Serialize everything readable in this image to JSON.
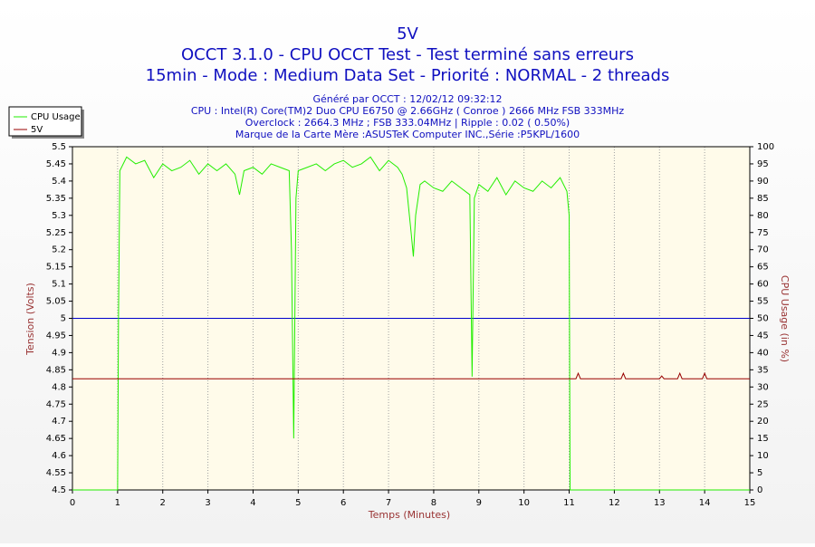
{
  "chart_data": {
    "type": "line",
    "title": "5V",
    "subtitle": [
      "OCCT 3.1.0 - CPU OCCT Test - Test terminé sans erreurs",
      "15min - Mode : Medium Data Set - Priorité : NORMAL - 2 threads"
    ],
    "info": [
      "Généré par OCCT : 12/02/12 09:32:12",
      "CPU : Intel(R) Core(TM)2 Duo CPU E6750 @ 2.66GHz ( Conroe ) 2666 MHz FSB 333MHz",
      "Overclock : 2664.3 MHz ; FSB 333.04MHz | Ripple : 0.02 ( 0.50%)",
      "Marque de la Carte Mère :ASUSTeK Computer INC.,Série :P5KPL/1600"
    ],
    "x_label": "Temps (Minutes)",
    "y_label": "Tension (Volts)",
    "y2_label": "CPU Usage (in %)",
    "xlim": [
      0,
      15
    ],
    "xticks": [
      0,
      1,
      2,
      3,
      4,
      5,
      6,
      7,
      8,
      9,
      10,
      11,
      12,
      13,
      14,
      15
    ],
    "ylim": [
      4.5,
      5.5
    ],
    "yticks": [
      4.5,
      4.55,
      4.6,
      4.65,
      4.7,
      4.75,
      4.8,
      4.85,
      4.9,
      4.95,
      5,
      5.05,
      5.1,
      5.15,
      5.2,
      5.25,
      5.3,
      5.35,
      5.4,
      5.45,
      5.5
    ],
    "y2lim": [
      0,
      100
    ],
    "y2ticks": [
      0,
      5,
      10,
      15,
      20,
      25,
      30,
      35,
      40,
      45,
      50,
      55,
      60,
      65,
      70,
      75,
      80,
      85,
      90,
      95,
      100
    ],
    "grid": "x",
    "legend": "upper left",
    "reference_line": {
      "value": 5,
      "color": "#0000cc"
    },
    "series": [
      {
        "name": "CPU Usage",
        "color": "#22ee00",
        "axis": "y2",
        "x": [
          0,
          1.0,
          1.02,
          1.05,
          1.2,
          1.4,
          1.6,
          1.8,
          2.0,
          2.2,
          2.4,
          2.6,
          2.8,
          3.0,
          3.2,
          3.4,
          3.6,
          3.7,
          3.8,
          4.0,
          4.2,
          4.4,
          4.6,
          4.8,
          4.85,
          4.9,
          4.95,
          5.0,
          5.2,
          5.4,
          5.6,
          5.8,
          6.0,
          6.2,
          6.4,
          6.6,
          6.8,
          7.0,
          7.2,
          7.3,
          7.4,
          7.5,
          7.55,
          7.6,
          7.7,
          7.8,
          8.0,
          8.2,
          8.4,
          8.6,
          8.8,
          8.85,
          8.9,
          9.0,
          9.2,
          9.4,
          9.6,
          9.8,
          10.0,
          10.2,
          10.4,
          10.6,
          10.8,
          10.95,
          11.0,
          11.02,
          15
        ],
        "values": [
          0,
          0,
          50,
          93,
          97,
          95,
          96,
          91,
          95,
          93,
          94,
          96,
          92,
          95,
          93,
          95,
          92,
          86,
          93,
          94,
          92,
          95,
          94,
          93,
          70,
          15,
          85,
          93,
          94,
          95,
          93,
          95,
          96,
          94,
          95,
          97,
          93,
          96,
          94,
          92,
          88,
          75,
          68,
          80,
          89,
          90,
          88,
          87,
          90,
          88,
          86,
          33,
          85,
          89,
          87,
          91,
          86,
          90,
          88,
          87,
          90,
          88,
          91,
          87,
          80,
          0,
          0
        ]
      },
      {
        "name": "5V",
        "color": "#990000",
        "x": [
          0,
          11.15,
          11.2,
          11.25,
          12.15,
          12.2,
          12.25,
          13.0,
          13.05,
          13.1,
          13.4,
          13.45,
          13.5,
          13.95,
          14.0,
          14.05,
          15
        ],
        "values": [
          4.824,
          4.824,
          4.84,
          4.824,
          4.824,
          4.84,
          4.824,
          4.824,
          4.832,
          4.824,
          4.824,
          4.84,
          4.824,
          4.824,
          4.84,
          4.824,
          4.824
        ]
      }
    ]
  }
}
